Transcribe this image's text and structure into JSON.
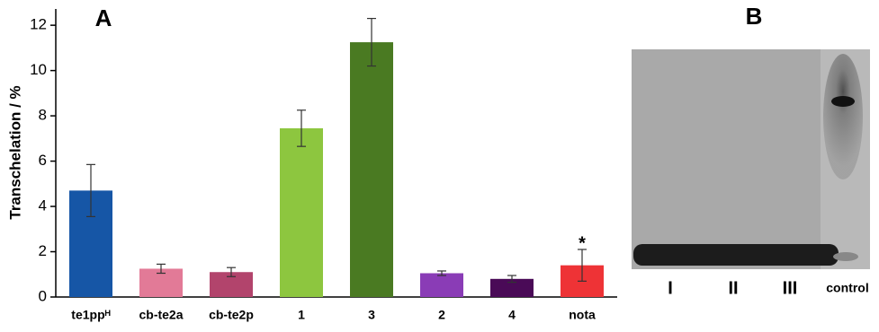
{
  "chart_data": {
    "type": "bar",
    "panel_label": "A",
    "y_label": "Transchelation / %",
    "categories": [
      "te1ppᴴ",
      "cb-te2a",
      "cb-te2p",
      "1",
      "3",
      "2",
      "4",
      "nota"
    ],
    "values": [
      4.7,
      1.25,
      1.1,
      7.45,
      11.25,
      1.05,
      0.8,
      1.4
    ],
    "errors": [
      1.15,
      0.2,
      0.2,
      0.8,
      1.05,
      0.1,
      0.15,
      0.7
    ],
    "colors": [
      "#1656a6",
      "#e27a97",
      "#b2446c",
      "#8dc63f",
      "#4a7a22",
      "#8a3cb6",
      "#4a0a57",
      "#ee3336"
    ],
    "annotation": {
      "text": "*",
      "category": 7
    },
    "ylim": [
      0,
      12.6
    ],
    "yticks": [
      0,
      2,
      4,
      6,
      8,
      10,
      12
    ]
  },
  "gel": {
    "panel_label": "B",
    "lanes": [
      "I",
      "II",
      "III",
      "control"
    ]
  }
}
